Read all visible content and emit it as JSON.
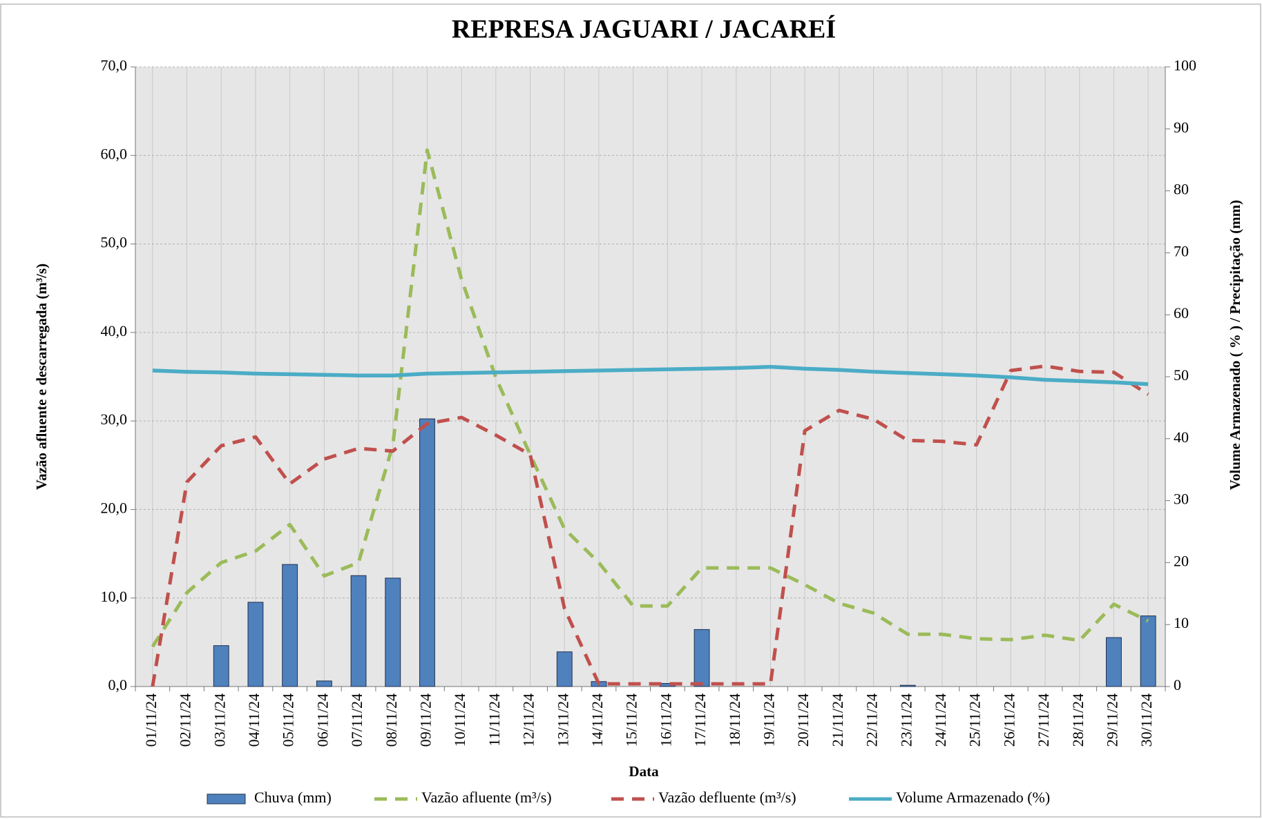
{
  "chart_data": {
    "type": "combo",
    "title": "REPRESA JAGUARI / JACAREÍ",
    "x_label": "Data",
    "y_label": "Vazão afluente e descarregada (m³/s)",
    "y2_label": "Volume Armazenado ( % ) / Precipitação  (mm)",
    "categories": [
      "01/11/24",
      "02/11/24",
      "03/11/24",
      "04/11/24",
      "05/11/24",
      "06/11/24",
      "07/11/24",
      "08/11/24",
      "09/11/24",
      "10/11/24",
      "11/11/24",
      "12/11/24",
      "13/11/24",
      "14/11/24",
      "15/11/24",
      "16/11/24",
      "17/11/24",
      "18/11/24",
      "19/11/24",
      "20/11/24",
      "21/11/24",
      "22/11/24",
      "23/11/24",
      "24/11/24",
      "25/11/24",
      "26/11/24",
      "27/11/24",
      "28/11/24",
      "29/11/24",
      "30/11/24"
    ],
    "series": [
      {
        "name": "Chuva (mm)",
        "type": "bar",
        "axis": "y2",
        "color": "#4f81bd",
        "values": [
          0,
          0,
          6.6,
          13.6,
          19.7,
          0.9,
          17.9,
          17.5,
          43.2,
          0,
          0,
          0,
          5.6,
          0.8,
          0,
          0.5,
          9.2,
          0,
          0,
          0,
          0,
          0,
          0.2,
          0,
          0,
          0,
          0,
          0,
          7.9,
          11.4
        ]
      },
      {
        "name": "Vazão afluente (m³/s)",
        "type": "line",
        "line_style": "dashed",
        "color": "#9bbb59",
        "values": [
          4.5,
          10.6,
          14.0,
          15.3,
          18.3,
          12.5,
          14.0,
          27.3,
          60.6,
          46.0,
          34.9,
          26.2,
          17.8,
          14.0,
          9.1,
          9.1,
          13.4,
          13.4,
          13.4,
          11.5,
          9.4,
          8.3,
          5.9,
          5.9,
          5.4,
          5.3,
          5.8,
          5.2,
          9.3,
          7.4
        ]
      },
      {
        "name": "Vazão defluente (m³/s)",
        "type": "line",
        "line_style": "dashed",
        "color": "#c0504d",
        "values": [
          0,
          23.1,
          27.2,
          28.2,
          22.9,
          25.7,
          26.9,
          26.6,
          29.7,
          30.4,
          28.4,
          26.2,
          8.8,
          0.3,
          0.3,
          0.3,
          0.3,
          0.3,
          0.3,
          28.9,
          31.2,
          30.2,
          27.8,
          27.7,
          27.3,
          35.7,
          36.2,
          35.6,
          35.5,
          33.0
        ]
      },
      {
        "name": "Volume Armazenado (%)",
        "type": "line",
        "line_style": "solid",
        "axis": "y2",
        "color": "#4bacc6",
        "values": [
          51.0,
          50.8,
          50.7,
          50.5,
          50.4,
          50.3,
          50.2,
          50.2,
          50.5,
          50.6,
          50.7,
          50.8,
          50.9,
          51.0,
          51.1,
          51.2,
          51.3,
          51.4,
          51.6,
          51.3,
          51.1,
          50.8,
          50.6,
          50.4,
          50.2,
          49.9,
          49.5,
          49.3,
          49.1,
          48.8
        ]
      }
    ],
    "ylim": [
      0,
      70
    ],
    "yticks": [
      {
        "value": 0,
        "label": "0,0"
      },
      {
        "value": 10,
        "label": "10,0"
      },
      {
        "value": 20,
        "label": "20,0"
      },
      {
        "value": 30,
        "label": "30,0"
      },
      {
        "value": 40,
        "label": "40,0"
      },
      {
        "value": 50,
        "label": "50,0"
      },
      {
        "value": 60,
        "label": "60,0"
      },
      {
        "value": 70,
        "label": "70,0"
      }
    ],
    "y2lim": [
      0,
      100
    ],
    "y2ticks": [
      0,
      10,
      20,
      30,
      40,
      50,
      60,
      70,
      80,
      90,
      100
    ],
    "grid": true,
    "legend": "bottom"
  }
}
